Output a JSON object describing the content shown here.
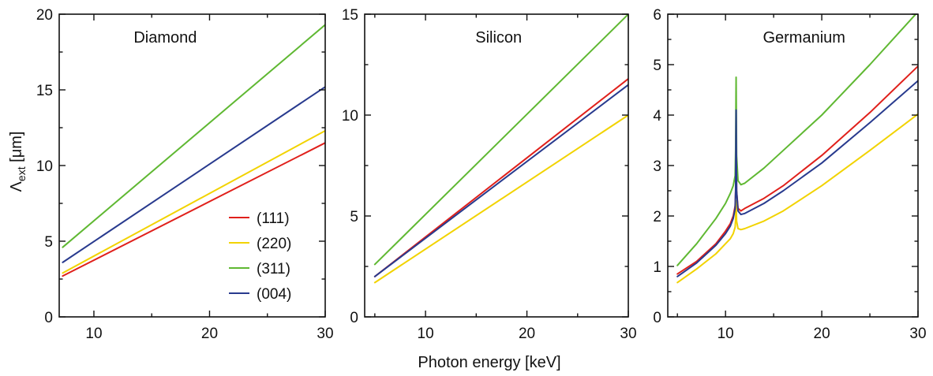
{
  "chart_data": {
    "type": "line",
    "xlabel": "Photon energy [keV]",
    "ylabel": "Λ",
    "ylabel_sub": "ext",
    "ylabel_unit": " [μm]",
    "legend": {
      "placement": "inside-lower-right of first panel",
      "entries": [
        "(111)",
        "(220)",
        "(311)",
        "(004)"
      ],
      "colors": [
        "#e0201b",
        "#f2d300",
        "#5fb832",
        "#283a8e"
      ]
    },
    "panels": [
      {
        "title": "Diamond",
        "xlim": [
          7,
          30
        ],
        "ylim": [
          0,
          20
        ],
        "xticks": [
          10,
          20,
          30
        ],
        "yticks": [
          0,
          5,
          10,
          15,
          20
        ],
        "series": [
          {
            "name": "(111)",
            "color": "#e0201b",
            "x": [
              7.3,
              30
            ],
            "y": [
              2.7,
              11.5
            ]
          },
          {
            "name": "(220)",
            "color": "#f2d300",
            "x": [
              7.3,
              30
            ],
            "y": [
              2.9,
              12.3
            ]
          },
          {
            "name": "(311)",
            "color": "#5fb832",
            "x": [
              7.3,
              30
            ],
            "y": [
              4.6,
              19.3
            ]
          },
          {
            "name": "(004)",
            "color": "#283a8e",
            "x": [
              7.3,
              30
            ],
            "y": [
              3.6,
              15.2
            ]
          }
        ]
      },
      {
        "title": "Silicon",
        "xlim": [
          4,
          30
        ],
        "ylim": [
          0,
          15
        ],
        "xticks": [
          10,
          20,
          30
        ],
        "yticks": [
          0,
          5,
          10,
          15
        ],
        "series": [
          {
            "name": "(111)",
            "color": "#e0201b",
            "x": [
              5,
              30
            ],
            "y": [
              2.0,
              11.8
            ]
          },
          {
            "name": "(220)",
            "color": "#f2d300",
            "x": [
              5,
              30
            ],
            "y": [
              1.7,
              10.0
            ]
          },
          {
            "name": "(311)",
            "color": "#5fb832",
            "x": [
              5,
              30
            ],
            "y": [
              2.6,
              15.0
            ]
          },
          {
            "name": "(004)",
            "color": "#283a8e",
            "x": [
              5,
              30
            ],
            "y": [
              2.0,
              11.5
            ]
          }
        ]
      },
      {
        "title": "Germanium",
        "xlim": [
          4,
          30
        ],
        "ylim": [
          0,
          6
        ],
        "xticks": [
          10,
          20,
          30
        ],
        "yticks": [
          0,
          1,
          2,
          3,
          4,
          5,
          6
        ],
        "series": [
          {
            "name": "(111)",
            "color": "#e0201b",
            "x": [
              5,
              7,
              9,
              10,
              10.5,
              10.8,
              11.0,
              11.05,
              11.08,
              11.1,
              11.15,
              11.3,
              11.6,
              12,
              14,
              16,
              20,
              25,
              30
            ],
            "y": [
              0.85,
              1.1,
              1.45,
              1.7,
              1.85,
              2.0,
              2.2,
              2.5,
              3.3,
              3.9,
              2.5,
              2.15,
              2.1,
              2.15,
              2.35,
              2.6,
              3.2,
              4.05,
              4.97
            ]
          },
          {
            "name": "(220)",
            "color": "#f2d300",
            "x": [
              5,
              7,
              9,
              10,
              10.5,
              10.8,
              11.0,
              11.05,
              11.08,
              11.1,
              11.15,
              11.3,
              11.6,
              12,
              14,
              16,
              20,
              25,
              30
            ],
            "y": [
              0.68,
              0.95,
              1.25,
              1.45,
              1.55,
              1.65,
              1.78,
              1.95,
              2.2,
              2.3,
              1.9,
              1.75,
              1.73,
              1.75,
              1.9,
              2.1,
              2.6,
              3.3,
              4.02
            ]
          },
          {
            "name": "(311)",
            "color": "#5fb832",
            "x": [
              5,
              7,
              9,
              10,
              10.5,
              10.8,
              11.0,
              11.05,
              11.08,
              11.1,
              11.15,
              11.3,
              11.6,
              12,
              14,
              16,
              20,
              25,
              30
            ],
            "y": [
              1.02,
              1.45,
              1.95,
              2.25,
              2.45,
              2.6,
              2.8,
              3.3,
              4.2,
              4.75,
              3.2,
              2.7,
              2.62,
              2.65,
              2.95,
              3.3,
              4.0,
              5.0,
              6.05
            ]
          },
          {
            "name": "(004)",
            "color": "#283a8e",
            "x": [
              5,
              7,
              9,
              10,
              10.5,
              10.8,
              11.0,
              11.05,
              11.08,
              11.1,
              11.15,
              11.3,
              11.6,
              12,
              14,
              16,
              20,
              25,
              30
            ],
            "y": [
              0.8,
              1.07,
              1.42,
              1.65,
              1.8,
              1.95,
              2.15,
              2.5,
              3.5,
              4.1,
              2.5,
              2.1,
              2.03,
              2.05,
              2.25,
              2.5,
              3.05,
              3.85,
              4.68
            ]
          }
        ]
      }
    ]
  }
}
